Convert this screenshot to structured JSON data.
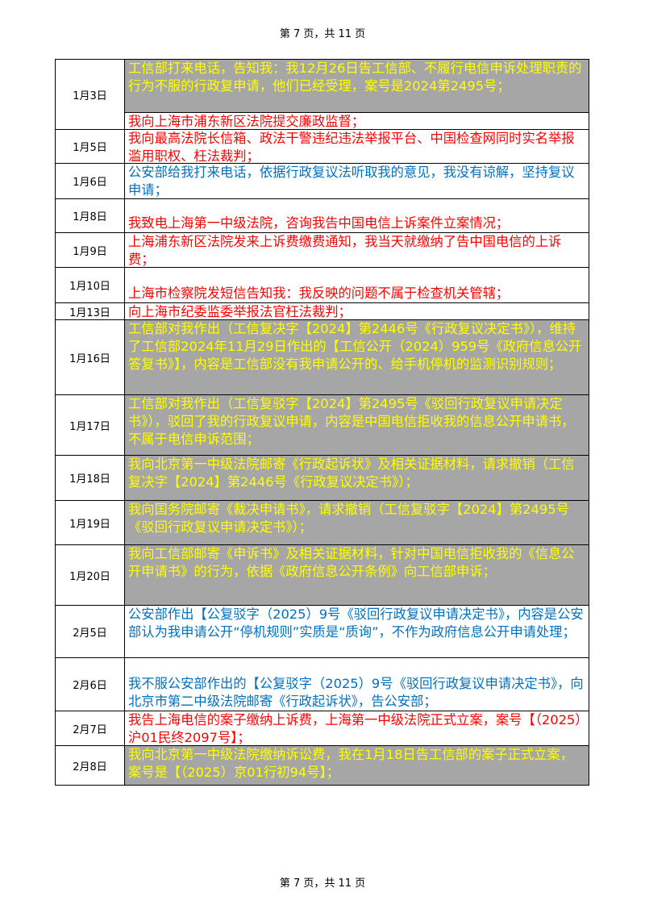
{
  "page_header": "第 7 页，共 11 页",
  "page_footer": "第 7 页，共 11 页",
  "colors": {
    "yellow_text": "#ffff00",
    "gray_fill": "#a6a6a6",
    "red_text": "#ff0000",
    "blue_text": "#0070c0"
  },
  "rows": [
    {
      "date": "1月3日",
      "entries": [
        {
          "style": "yellow",
          "text": "工信部打来电话，告知我：我12月26日告工信部、不履行电信申诉处理职责的行为不服的行政复申请，他们已经受理，案号是2024第2495号；"
        },
        {
          "style": "red",
          "text": "我向上海市浦东新区法院提交廉政监督；"
        }
      ]
    },
    {
      "date": "1月5日",
      "entries": [
        {
          "style": "red",
          "text": "我向最高法院长信箱、政法干警违纪违法举报平台、中国检查网同时实名举报滥用职权、枉法裁判；"
        }
      ]
    },
    {
      "date": "1月6日",
      "entries": [
        {
          "style": "blue",
          "text": "公安部给我打来电话，依据行政复议法听取我的意见，我没有谅解，坚持复议申请；"
        }
      ]
    },
    {
      "date": "1月8日",
      "entries": [
        {
          "style": "red",
          "align": "bottom",
          "text": "我致电上海第一中级法院，咨询我告中国电信上诉案件立案情况；"
        }
      ]
    },
    {
      "date": "1月9日",
      "entries": [
        {
          "style": "red",
          "text": "上海浦东新区法院发来上诉费缴费通知，我当天就缴纳了告中国电信的上诉费；"
        }
      ]
    },
    {
      "date": "1月10日",
      "entries": [
        {
          "style": "red",
          "align": "bottom",
          "text": "上海市检察院发短信告知我：我反映的问题不属于检查机关管辖；"
        }
      ]
    },
    {
      "date": "1月13日",
      "entries": [
        {
          "style": "red",
          "text": "向上海市纪委监委举报法官枉法裁判；"
        }
      ]
    },
    {
      "date": "1月16日",
      "entries": [
        {
          "style": "yellow",
          "text": "工信部对我作出（工信复决字【2024】第2446号《行政复议决定书》），维持了工信部2024年11月29日作出的【工信公开（2024）959号《政府信息公开答复书》】，内容是工信部没有我申请公开的、给手机停机的监测识别规则；"
        }
      ]
    },
    {
      "date": "1月17日",
      "entries": [
        {
          "style": "yellow",
          "text": "工信部对我作出（工信复驳字【2024】第2495号《驳回行政复议申请决定书》），驳回了我的行政复议申请，内容是中国电信拒收我的信息公开申请书，不属于电信申诉范围；"
        }
      ]
    },
    {
      "date": "1月18日",
      "entries": [
        {
          "style": "yellow",
          "text": "我向北京第一中级法院邮寄《行政起诉状》及相关证据材料，请求撤销（工信复决字【2024】第2446号《行政复议决定书》）；"
        }
      ]
    },
    {
      "date": "1月19日",
      "entries": [
        {
          "style": "yellow",
          "text": "我向国务院邮寄《裁决申请书》，请求撤销（工信复驳字【2024】第2495号《驳回行政复议申请决定书》）；"
        }
      ]
    },
    {
      "date": "1月20日",
      "entries": [
        {
          "style": "yellow",
          "text": "我向工信部邮寄《申诉书》及相关证据材料，针对中国电信拒收我的《信息公开申请书》的行为，依据《政府信息公开条例》向工信部申诉；"
        }
      ]
    },
    {
      "date": "2月5日",
      "entries": [
        {
          "style": "blue",
          "text": "公安部作出【公复驳字（2025）9号《驳回行政复议申请决定书》，内容是公安部认为我申请公开“停机规则”实质是“质询”，不作为政府信息公开申请处理；"
        }
      ]
    },
    {
      "date": "2月6日",
      "entries": [
        {
          "style": "blue",
          "align": "bottom",
          "text": "我不服公安部作出的【公复驳字（2025）9号《驳回行政复议申请决定书》，向北京市第二中级法院邮寄《行政起诉状》，告公安部；"
        }
      ]
    },
    {
      "date": "2月7日",
      "entries": [
        {
          "style": "red",
          "text": "我告上海电信的案子缴纳上诉费，上海第一中级法院正式立案，案号【（2025）沪01民终2097号】；"
        }
      ]
    },
    {
      "date": "2月8日",
      "entries": [
        {
          "style": "yellow",
          "text": "我向北京第一中级法院缴纳诉讼费，我在1月18日告工信部的案子正式立案，案号是【（2025）京01行初94号】；"
        }
      ]
    }
  ]
}
